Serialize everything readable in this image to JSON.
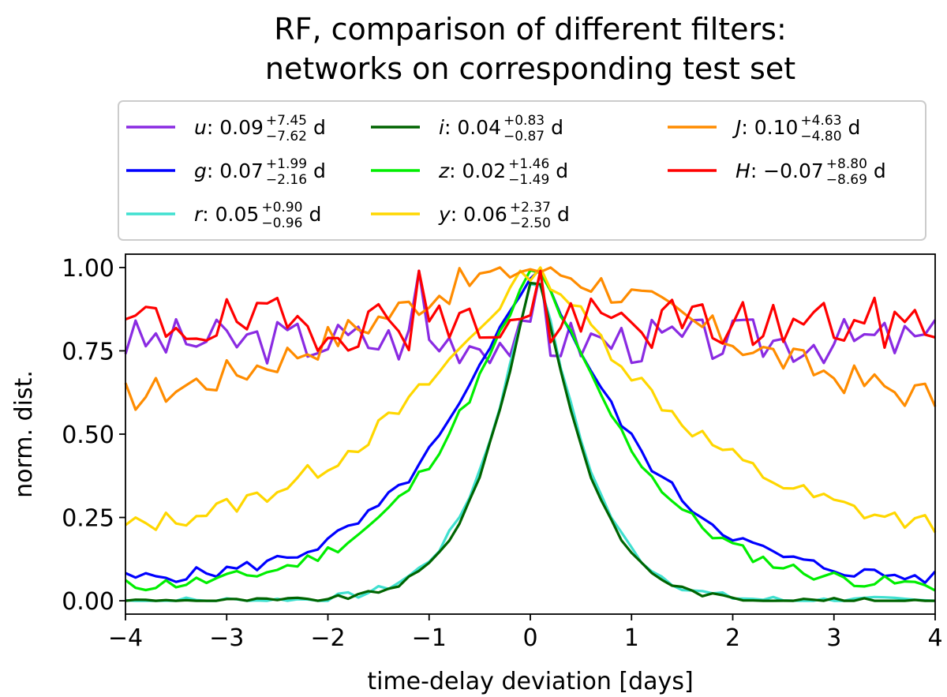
{
  "chart_data": {
    "type": "line",
    "title_lines": [
      "RF, comparison of different filters:",
      "networks on corresponding test set"
    ],
    "xlabel": "time-delay deviation [days]",
    "ylabel": "norm. dist.",
    "xlim": [
      -4,
      4
    ],
    "ylim": [
      -0.04,
      1.04
    ],
    "xticks": [
      -4,
      -3,
      -2,
      -1,
      0,
      1,
      2,
      3,
      4
    ],
    "xtick_labels": [
      "−4",
      "−3",
      "−2",
      "−1",
      "0",
      "1",
      "2",
      "3",
      "4"
    ],
    "yticks": [
      0,
      0.25,
      0.5,
      0.75,
      1.0
    ],
    "ytick_labels": [
      "0.00",
      "0.25",
      "0.50",
      "0.75",
      "1.00"
    ],
    "grid": false,
    "legend_position": "top, above plot, 3 columns",
    "series": [
      {
        "name": "u",
        "color": "#8a2be2",
        "value": "0.09",
        "plus": "+7.45",
        "minus": "−7.62",
        "unit": "d",
        "shape": "flat",
        "level": 0.78,
        "noise": 0.07,
        "seed": 3
      },
      {
        "name": "g",
        "color": "#0000ff",
        "value": "0.07",
        "plus": "+1.99",
        "minus": "−2.16",
        "unit": "d",
        "shape": "peak",
        "level": 0.06,
        "width": 1.15,
        "noise": 0.02,
        "seed": 5
      },
      {
        "name": "r",
        "color": "#40e0d0",
        "value": "0.05",
        "plus": "+0.90",
        "minus": "−0.96",
        "unit": "d",
        "shape": "peak",
        "level": 0.0,
        "width": 0.58,
        "noise": 0.012,
        "seed": 7
      },
      {
        "name": "i",
        "color": "#006400",
        "value": "0.04",
        "plus": "+0.83",
        "minus": "−0.87",
        "unit": "d",
        "shape": "peak",
        "level": 0.0,
        "width": 0.56,
        "noise": 0.008,
        "seed": 9
      },
      {
        "name": "z",
        "color": "#00ee00",
        "value": "0.02",
        "plus": "+1.46",
        "minus": "−1.49",
        "unit": "d",
        "shape": "peak",
        "level": 0.04,
        "width": 1.1,
        "noise": 0.02,
        "seed": 11
      },
      {
        "name": "y",
        "color": "#ffd700",
        "value": "0.06",
        "plus": "+2.37",
        "minus": "−2.50",
        "unit": "d",
        "shape": "peak",
        "level": 0.18,
        "width": 1.7,
        "noise": 0.03,
        "seed": 13
      },
      {
        "name": "J",
        "color": "#ff8c00",
        "value": "0.10",
        "plus": "+4.63",
        "minus": "−4.80",
        "unit": "d",
        "shape": "broad",
        "level": 0.55,
        "width": 2.6,
        "noise": 0.05,
        "seed": 17
      },
      {
        "name": "H",
        "color": "#ff0000",
        "value": "−0.07",
        "plus": "+8.80",
        "minus": "−8.69",
        "unit": "d",
        "shape": "flat",
        "level": 0.83,
        "noise": 0.08,
        "seed": 19
      }
    ]
  }
}
